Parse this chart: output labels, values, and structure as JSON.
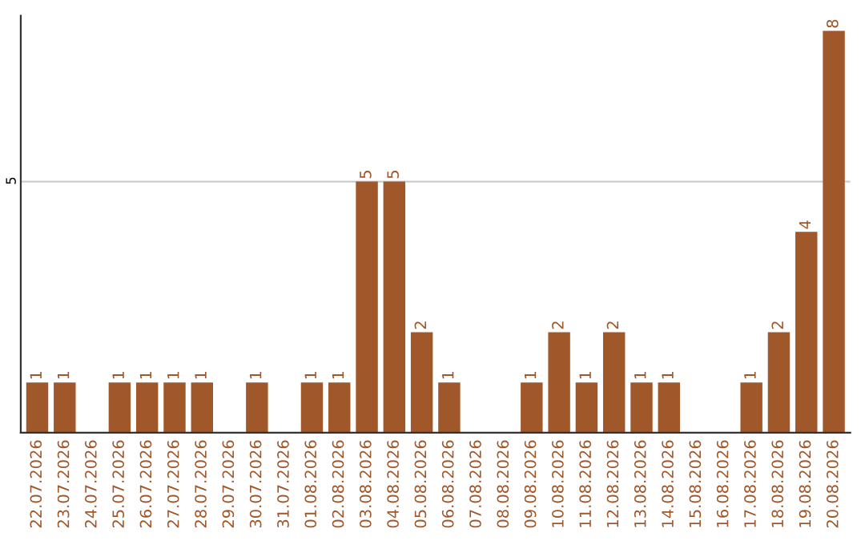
{
  "chart_data": {
    "type": "bar",
    "categories": [
      "22.07.2026",
      "23.07.2026",
      "24.07.2026",
      "25.07.2026",
      "26.07.2026",
      "27.07.2026",
      "28.07.2026",
      "29.07.2026",
      "30.07.2026",
      "31.07.2026",
      "01.08.2026",
      "02.08.2026",
      "03.08.2026",
      "04.08.2026",
      "05.08.2026",
      "06.08.2026",
      "07.08.2026",
      "08.08.2026",
      "09.08.2026",
      "10.08.2026",
      "11.08.2026",
      "12.08.2026",
      "13.08.2026",
      "14.08.2026",
      "15.08.2026",
      "16.08.2026",
      "17.08.2026",
      "18.08.2026",
      "19.08.2026",
      "20.08.2026"
    ],
    "values": [
      1,
      1,
      0,
      1,
      1,
      1,
      1,
      0,
      1,
      0,
      1,
      1,
      5,
      5,
      2,
      1,
      0,
      0,
      1,
      2,
      1,
      2,
      1,
      1,
      0,
      0,
      1,
      2,
      4,
      8
    ],
    "value_labels": [
      "1",
      "1",
      null,
      "1",
      "1",
      "1",
      "1",
      null,
      "1",
      null,
      "1",
      "1",
      "5",
      "5",
      "2",
      "1",
      null,
      null,
      "1",
      "2",
      "1",
      "2",
      "1",
      "1",
      null,
      null,
      "1",
      "2",
      "4",
      "8"
    ],
    "color": "#a0572a",
    "ylim": [
      0,
      8.3
    ],
    "yticks": [
      5
    ],
    "grid": "y"
  }
}
